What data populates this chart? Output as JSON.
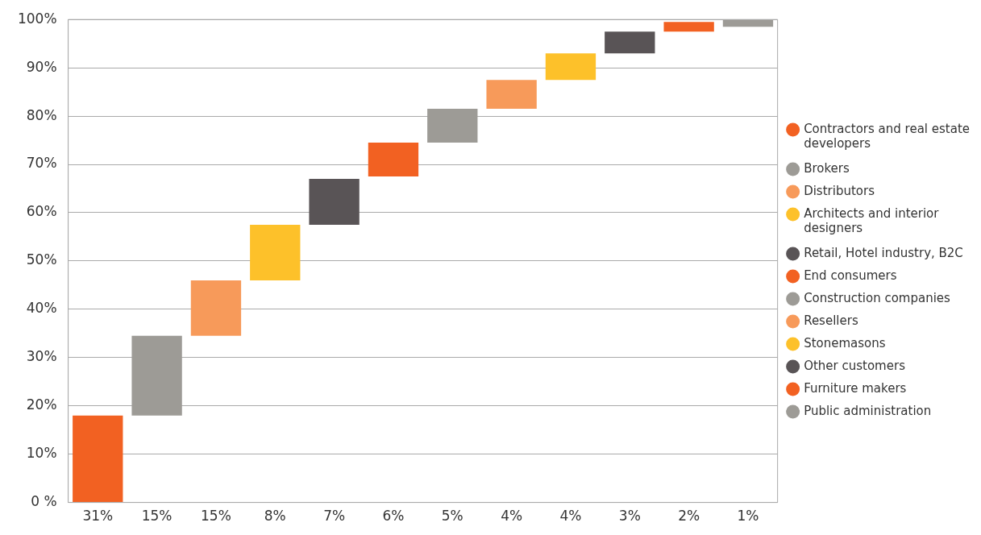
{
  "chart_data": {
    "type": "bar",
    "categories": [
      "31%",
      "15%",
      "15%",
      "8%",
      "7%",
      "6%",
      "5%",
      "4%",
      "4%",
      "3%",
      "2%",
      "1%"
    ],
    "series": [
      {
        "name": "Contractors and real estate developers",
        "color": "#f26122",
        "base": [
          0,
          null,
          null,
          null,
          null,
          null,
          null,
          null,
          null,
          null,
          null,
          null
        ],
        "values": [
          18,
          null,
          null,
          null,
          null,
          null,
          null,
          null,
          null,
          null,
          null,
          null
        ]
      },
      {
        "name": "Brokers",
        "color": "#9d9b96",
        "base": [
          null,
          18,
          null,
          null,
          null,
          null,
          null,
          null,
          null,
          null,
          null,
          null
        ],
        "values": [
          null,
          16.5,
          null,
          null,
          null,
          null,
          null,
          null,
          null,
          null,
          null,
          null
        ]
      },
      {
        "name": "Distributors",
        "color": "#f79a5a",
        "base": [
          null,
          null,
          34.5,
          null,
          null,
          null,
          null,
          null,
          null,
          null,
          null,
          null
        ],
        "values": [
          null,
          null,
          11.5,
          null,
          null,
          null,
          null,
          null,
          null,
          null,
          null,
          null
        ]
      },
      {
        "name": "Architects and interior designers",
        "color": "#fdc12a",
        "base": [
          null,
          null,
          null,
          46,
          null,
          null,
          null,
          null,
          null,
          null,
          null,
          null
        ],
        "values": [
          null,
          null,
          null,
          11.5,
          null,
          null,
          null,
          null,
          null,
          null,
          null,
          null
        ]
      },
      {
        "name": "Retail, Hotel industry, B2C",
        "color": "#595456",
        "base": [
          null,
          null,
          null,
          null,
          57.5,
          null,
          null,
          null,
          null,
          null,
          null,
          null
        ],
        "values": [
          null,
          null,
          null,
          null,
          9.5,
          null,
          null,
          null,
          null,
          null,
          null,
          null
        ]
      },
      {
        "name": "End consumers",
        "color": "#f26122",
        "base": [
          null,
          null,
          null,
          null,
          null,
          67.5,
          null,
          null,
          null,
          null,
          null,
          null
        ],
        "values": [
          null,
          null,
          null,
          null,
          null,
          7,
          null,
          null,
          null,
          null,
          null,
          null
        ]
      },
      {
        "name": "Construction companies",
        "color": "#9d9b96",
        "base": [
          null,
          null,
          null,
          null,
          null,
          null,
          74.5,
          null,
          null,
          null,
          null,
          null
        ],
        "values": [
          null,
          null,
          null,
          null,
          null,
          null,
          7,
          null,
          null,
          null,
          null,
          null
        ]
      },
      {
        "name": "Resellers",
        "color": "#f79a5a",
        "base": [
          null,
          null,
          null,
          null,
          null,
          null,
          null,
          81.5,
          null,
          null,
          null,
          null
        ],
        "values": [
          null,
          null,
          null,
          null,
          null,
          null,
          null,
          6,
          null,
          null,
          null,
          null
        ]
      },
      {
        "name": "Stonemasons",
        "color": "#fdc12a",
        "base": [
          null,
          null,
          null,
          null,
          null,
          null,
          null,
          null,
          87.5,
          null,
          null,
          null
        ],
        "values": [
          null,
          null,
          null,
          null,
          null,
          null,
          null,
          null,
          5.5,
          null,
          null,
          null
        ]
      },
      {
        "name": "Other customers",
        "color": "#595456",
        "base": [
          null,
          null,
          null,
          null,
          null,
          null,
          null,
          null,
          null,
          93,
          null,
          null
        ],
        "values": [
          null,
          null,
          null,
          null,
          null,
          null,
          null,
          null,
          null,
          4.5,
          null,
          null
        ]
      },
      {
        "name": "Furniture makers",
        "color": "#f26122",
        "base": [
          null,
          null,
          null,
          null,
          null,
          null,
          null,
          null,
          null,
          null,
          97.5,
          null
        ],
        "values": [
          null,
          null,
          null,
          null,
          null,
          null,
          null,
          null,
          null,
          null,
          2,
          null
        ]
      },
      {
        "name": "Public administration",
        "color": "#9d9b96",
        "base": [
          null,
          null,
          null,
          null,
          null,
          null,
          null,
          null,
          null,
          null,
          null,
          98.5
        ],
        "values": [
          null,
          null,
          null,
          null,
          null,
          null,
          null,
          null,
          null,
          null,
          null,
          1.5
        ]
      }
    ],
    "ylim": [
      0,
      100
    ],
    "yticks": [
      {
        "value": 0,
        "label": "0 %"
      },
      {
        "value": 10,
        "label": "10%"
      },
      {
        "value": 20,
        "label": "20%"
      },
      {
        "value": 30,
        "label": "30%"
      },
      {
        "value": 40,
        "label": "40%"
      },
      {
        "value": 50,
        "label": "50%"
      },
      {
        "value": 60,
        "label": "60%"
      },
      {
        "value": 70,
        "label": "70%"
      },
      {
        "value": 80,
        "label": "80%"
      },
      {
        "value": 90,
        "label": "90%"
      },
      {
        "value": 100,
        "label": "100%"
      }
    ],
    "grid": "y",
    "legend": "right"
  }
}
